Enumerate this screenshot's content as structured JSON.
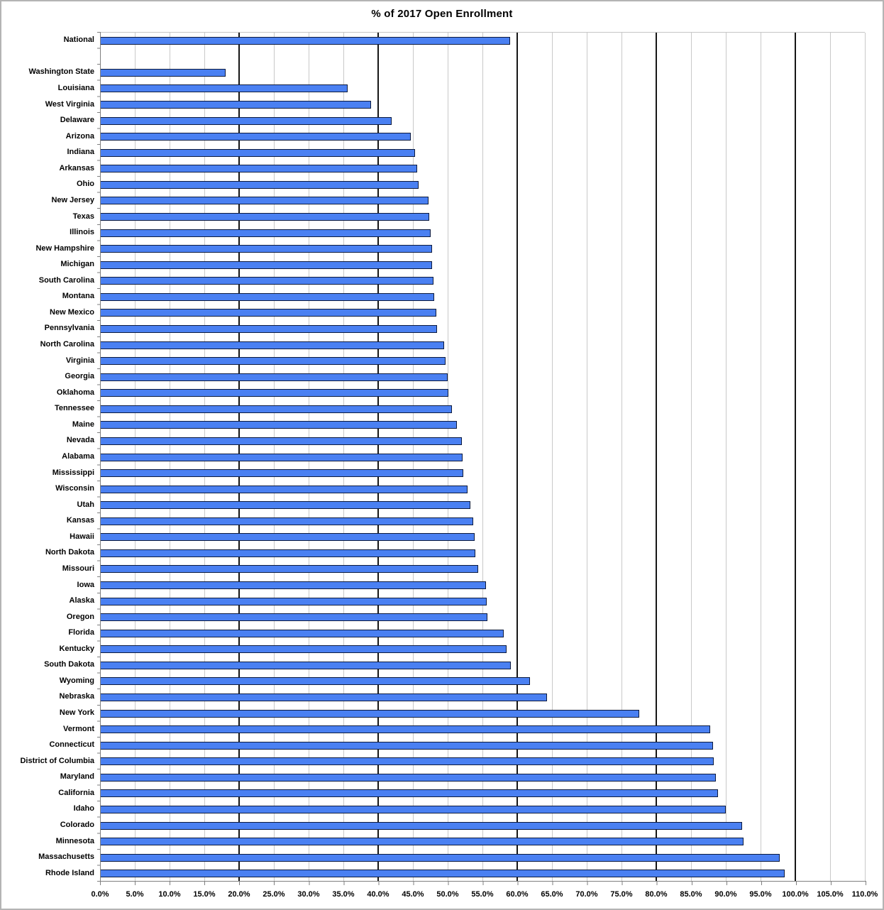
{
  "chart_data": {
    "type": "bar",
    "orientation": "horizontal",
    "title": "% of 2017 Open Enrollment",
    "xlabel": "",
    "ylabel": "",
    "xlim": [
      0,
      110
    ],
    "x_tick_step_percent": 5,
    "x_tick_labels": [
      "0.0%",
      "5.0%",
      "10.0%",
      "15.0%",
      "20.0%",
      "25.0%",
      "30.0%",
      "35.0%",
      "40.0%",
      "45.0%",
      "50.0%",
      "55.0%",
      "60.0%",
      "65.0%",
      "70.0%",
      "75.0%",
      "80.0%",
      "85.0%",
      "90.0%",
      "95.0%",
      "100.0%",
      "105.0%",
      "110.0%"
    ],
    "dark_gridlines_at_percent": [
      20,
      40,
      60,
      80,
      100
    ],
    "grid": true,
    "legend": false,
    "bar_color": "#4a80f2",
    "bar_border_color": "#0d1b3e",
    "light_gridline_color": "#c9c9c9",
    "dark_gridline_color": "#161616",
    "axis_color": "#7f7f7f",
    "categories": [
      "National",
      "",
      "Washington State",
      "Louisiana",
      "West Virginia",
      "Delaware",
      "Arizona",
      "Indiana",
      "Arkansas",
      "Ohio",
      "New Jersey",
      "Texas",
      "Illinois",
      "New Hampshire",
      "Michigan",
      "South Carolina",
      "Montana",
      "New Mexico",
      "Pennsylvania",
      "North Carolina",
      "Virginia",
      "Georgia",
      "Oklahoma",
      "Tennessee",
      "Maine",
      "Nevada",
      "Alabama",
      "Mississippi",
      "Wisconsin",
      "Utah",
      "Kansas",
      "Hawaii",
      "North Dakota",
      "Missouri",
      "Iowa",
      "Alaska",
      "Oregon",
      "Florida",
      "Kentucky",
      "South Dakota",
      "Wyoming",
      "Nebraska",
      "New York",
      "Vermont",
      "Connecticut",
      "District of Columbia",
      "Maryland",
      "California",
      "Idaho",
      "Colorado",
      "Minnesota",
      "Massachusetts",
      "Rhode Island"
    ],
    "values": [
      58.8,
      null,
      17.9,
      35.4,
      38.8,
      41.7,
      44.5,
      45.1,
      45.4,
      45.6,
      47.0,
      47.1,
      47.3,
      47.5,
      47.6,
      47.8,
      47.9,
      48.2,
      48.3,
      49.3,
      49.5,
      49.8,
      49.9,
      50.4,
      51.1,
      51.8,
      51.9,
      52.0,
      52.7,
      53.1,
      53.5,
      53.7,
      53.8,
      54.2,
      55.3,
      55.4,
      55.5,
      57.9,
      58.3,
      58.9,
      61.6,
      64.1,
      77.3,
      87.5,
      88.0,
      88.1,
      88.4,
      88.7,
      89.8,
      92.1,
      92.3,
      97.5,
      98.3
    ]
  }
}
